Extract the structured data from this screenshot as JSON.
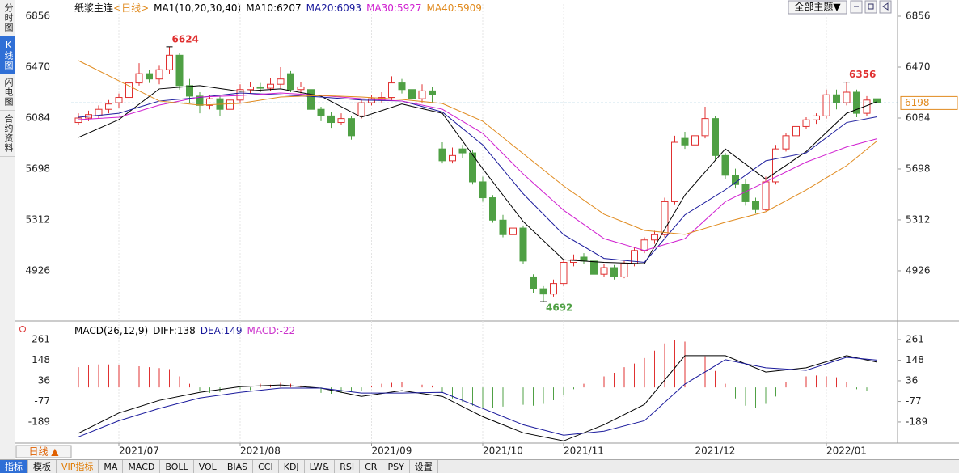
{
  "sidebar": {
    "tabs": [
      "分时图",
      "K线图",
      "闪电图",
      "合约资料"
    ]
  },
  "topbar": {
    "theme_button": "全部主题▼"
  },
  "period_button": "日线 ▲",
  "toolbar": {
    "tabs": [
      "指标",
      "模板",
      "VIP指标",
      "MA",
      "MACD",
      "BOLL",
      "VOL",
      "BIAS",
      "CCI",
      "KDJ",
      "LW&",
      "RSI",
      "CR",
      "PSY",
      "设置"
    ]
  },
  "chart_data": [
    {
      "type": "candlestick",
      "title": "纸浆主连",
      "period": "<日线>",
      "indicator": "MA1(10,20,30,40)",
      "up_color": "#e03030",
      "down_color": "#4fa044",
      "last_line_color": "#3a8fb7",
      "ylim": [
        4558,
        6948
      ],
      "yticks": [
        6856,
        6470,
        6084,
        5698,
        5312,
        4926
      ],
      "xlim": [
        -0.72,
        81.04
      ],
      "xticks": [
        {
          "value": 4,
          "label": "2021/07"
        },
        {
          "value": 16,
          "label": "2021/08"
        },
        {
          "value": 29,
          "label": "2021/09"
        },
        {
          "value": 40,
          "label": "2021/10"
        },
        {
          "value": 48,
          "label": "2021/11"
        },
        {
          "value": 61,
          "label": "2021/12"
        },
        {
          "value": 74,
          "label": "2022/01"
        }
      ],
      "candles": [
        [
          6050,
          6120,
          6030,
          6084
        ],
        [
          6084,
          6140,
          6060,
          6110
        ],
        [
          6100,
          6180,
          6080,
          6150
        ],
        [
          6150,
          6220,
          6120,
          6190
        ],
        [
          6200,
          6270,
          6160,
          6240
        ],
        [
          6240,
          6470,
          6220,
          6350
        ],
        [
          6350,
          6500,
          6330,
          6420
        ],
        [
          6420,
          6450,
          6350,
          6380
        ],
        [
          6380,
          6480,
          6340,
          6450
        ],
        [
          6450,
          6624,
          6420,
          6560
        ],
        [
          6560,
          6580,
          6300,
          6330
        ],
        [
          6330,
          6380,
          6200,
          6250
        ],
        [
          6250,
          6280,
          6120,
          6180
        ],
        [
          6180,
          6260,
          6150,
          6230
        ],
        [
          6230,
          6250,
          6100,
          6150
        ],
        [
          6150,
          6260,
          6060,
          6220
        ],
        [
          6220,
          6340,
          6200,
          6300
        ],
        [
          6300,
          6360,
          6270,
          6320
        ],
        [
          6320,
          6350,
          6280,
          6310
        ],
        [
          6310,
          6390,
          6290,
          6340
        ],
        [
          6340,
          6470,
          6310,
          6380
        ],
        [
          6420,
          6440,
          6280,
          6300
        ],
        [
          6300,
          6360,
          6270,
          6320
        ],
        [
          6300,
          6310,
          6120,
          6150
        ],
        [
          6150,
          6170,
          6060,
          6100
        ],
        [
          6100,
          6130,
          6010,
          6050
        ],
        [
          6050,
          6120,
          6030,
          6080
        ],
        [
          6080,
          6100,
          5920,
          5950
        ],
        [
          6100,
          6230,
          6080,
          6200
        ],
        [
          6200,
          6260,
          6180,
          6230
        ],
        [
          6220,
          6280,
          6200,
          6240
        ],
        [
          6240,
          6400,
          6220,
          6350
        ],
        [
          6350,
          6380,
          6270,
          6300
        ],
        [
          6300,
          6330,
          6040,
          6230
        ],
        [
          6230,
          6340,
          6200,
          6290
        ],
        [
          6290,
          6320,
          6200,
          6260
        ],
        [
          5850,
          5900,
          5740,
          5760
        ],
        [
          5760,
          5860,
          5740,
          5800
        ],
        [
          5850,
          5880,
          5780,
          5820
        ],
        [
          5820,
          5840,
          5580,
          5600
        ],
        [
          5600,
          5640,
          5450,
          5480
        ],
        [
          5480,
          5500,
          5290,
          5310
        ],
        [
          5310,
          5350,
          5180,
          5200
        ],
        [
          5200,
          5290,
          5170,
          5250
        ],
        [
          5250,
          5270,
          4980,
          5000
        ],
        [
          4880,
          4900,
          4760,
          4790
        ],
        [
          4790,
          4810,
          4692,
          4750
        ],
        [
          4750,
          4860,
          4730,
          4830
        ],
        [
          4830,
          5010,
          4810,
          4990
        ],
        [
          4990,
          5050,
          4960,
          5010
        ],
        [
          5030,
          5060,
          4980,
          5000
        ],
        [
          5000,
          5020,
          4880,
          4900
        ],
        [
          4900,
          4980,
          4880,
          4950
        ],
        [
          4950,
          4970,
          4860,
          4880
        ],
        [
          4880,
          5000,
          4870,
          4980
        ],
        [
          4980,
          5100,
          4960,
          5080
        ],
        [
          5080,
          5180,
          5060,
          5160
        ],
        [
          5160,
          5230,
          5130,
          5200
        ],
        [
          5200,
          5480,
          5180,
          5450
        ],
        [
          5450,
          5950,
          5430,
          5900
        ],
        [
          5930,
          5980,
          5850,
          5880
        ],
        [
          5880,
          5990,
          5860,
          5950
        ],
        [
          5950,
          6170,
          5930,
          6080
        ],
        [
          6080,
          6100,
          5760,
          5800
        ],
        [
          5800,
          5820,
          5620,
          5650
        ],
        [
          5650,
          5700,
          5550,
          5580
        ],
        [
          5580,
          5620,
          5420,
          5450
        ],
        [
          5450,
          5480,
          5360,
          5390
        ],
        [
          5390,
          5640,
          5380,
          5600
        ],
        [
          5600,
          5880,
          5580,
          5850
        ],
        [
          5850,
          5970,
          5830,
          5950
        ],
        [
          5950,
          6040,
          5930,
          6020
        ],
        [
          6020,
          6090,
          6000,
          6070
        ],
        [
          6070,
          6120,
          6040,
          6100
        ],
        [
          6100,
          6300,
          6080,
          6260
        ],
        [
          6260,
          6300,
          6150,
          6200
        ],
        [
          6200,
          6356,
          6180,
          6280
        ],
        [
          6280,
          6300,
          6090,
          6120
        ],
        [
          6120,
          6250,
          6100,
          6220
        ],
        [
          6230,
          6260,
          6170,
          6198
        ]
      ],
      "x": [
        0,
        4,
        8,
        12,
        16,
        20,
        24,
        28,
        32,
        36,
        40,
        44,
        48,
        52,
        56,
        60,
        64,
        68,
        72,
        76,
        79
      ],
      "series": [
        {
          "name": "MA10:6207",
          "color": "#000000",
          "values": [
            5937,
            6072,
            6305,
            6330,
            6286,
            6305,
            6250,
            6090,
            6190,
            6120,
            5700,
            5300,
            5010,
            4990,
            4980,
            5500,
            5850,
            5620,
            5830,
            6120,
            6207
          ]
        },
        {
          "name": "MA20:6093",
          "color": "#1a1a9c",
          "values": [
            6090,
            6120,
            6213,
            6240,
            6274,
            6260,
            6243,
            6220,
            6213,
            6130,
            5880,
            5510,
            5200,
            5020,
            4990,
            5350,
            5540,
            5760,
            5820,
            6050,
            6093
          ]
        },
        {
          "name": "MA30:5927",
          "color": "#d020d0",
          "values": [
            6072,
            6090,
            6182,
            6243,
            6255,
            6274,
            6255,
            6230,
            6213,
            6151,
            5968,
            5660,
            5385,
            5170,
            5080,
            5170,
            5450,
            5600,
            5750,
            5865,
            5927
          ]
        },
        {
          "name": "MA40:5909",
          "color": "#e08a1e",
          "values": [
            6519,
            6366,
            6213,
            6182,
            6195,
            6243,
            6255,
            6243,
            6225,
            6194,
            6060,
            5814,
            5569,
            5355,
            5232,
            5202,
            5294,
            5374,
            5539,
            5723,
            5909
          ]
        }
      ],
      "annotations": [
        {
          "x": 9,
          "y": 6624,
          "color": "#e03030"
        },
        {
          "x": 46,
          "y": 4692,
          "color": "#4fa044"
        },
        {
          "x": 76,
          "y": 6356,
          "color": "#e03030"
        }
      ]
    },
    {
      "type": "macd",
      "title": "MACD(26,12,9)",
      "ylim": [
        -304,
        327
      ],
      "yticks": [
        261,
        148,
        36,
        -77,
        -189
      ],
      "xlim": [
        -0.72,
        81.04
      ],
      "histogram": {
        "name": "MACD:-22",
        "color": "#cc33cc",
        "up_color": "#e03030",
        "down_color": "#4fa044",
        "values": [
          110,
          120,
          125,
          125,
          120,
          118,
          115,
          110,
          105,
          100,
          60,
          20,
          -20,
          -30,
          -25,
          -15,
          -10,
          -15,
          20,
          15,
          25,
          20,
          10,
          -20,
          -30,
          -35,
          -30,
          -25,
          -20,
          10,
          20,
          25,
          30,
          20,
          15,
          10,
          -30,
          -60,
          -80,
          -100,
          -110,
          -110,
          -105,
          -100,
          -95,
          -100,
          -90,
          -70,
          -40,
          -10,
          20,
          40,
          60,
          80,
          110,
          130,
          160,
          200,
          240,
          260,
          250,
          220,
          170,
          90,
          20,
          -60,
          -100,
          -110,
          -90,
          -50,
          30,
          50,
          60,
          65,
          60,
          55,
          30,
          -10,
          -18,
          -22
        ]
      },
      "x": [
        0,
        4,
        8,
        12,
        16,
        20,
        24,
        28,
        32,
        36,
        40,
        44,
        48,
        52,
        56,
        60,
        64,
        68,
        72,
        76,
        79
      ],
      "series": [
        {
          "name": "DIFF:138",
          "color": "#000000",
          "values": [
            -250,
            -140,
            -71,
            -27,
            4,
            13,
            -4,
            -49,
            -18,
            -49,
            -160,
            -248,
            -292,
            -204,
            -93,
            173,
            173,
            84,
            107,
            173,
            138
          ]
        },
        {
          "name": "DEA:149",
          "color": "#1a1a9c",
          "values": [
            -270,
            -182,
            -115,
            -58,
            -27,
            -4,
            -4,
            -31,
            -31,
            -27,
            -115,
            -204,
            -261,
            -239,
            -182,
            18,
            151,
            107,
            93,
            164,
            149
          ]
        }
      ]
    }
  ]
}
